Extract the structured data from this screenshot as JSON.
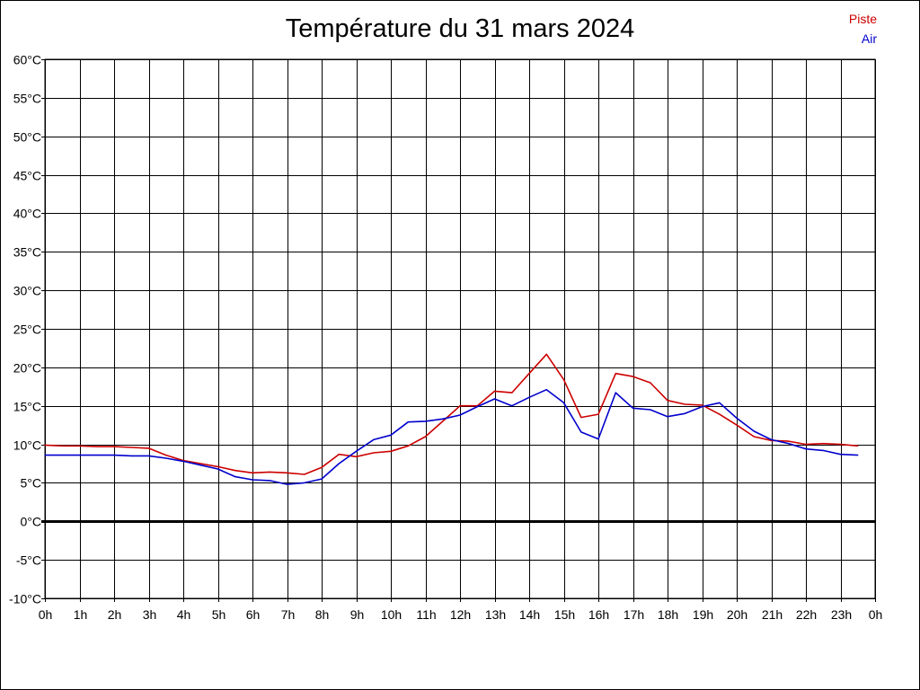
{
  "chart_data": {
    "type": "line",
    "title": "Température du 31 mars 2024",
    "xlabel": "",
    "ylabel": "",
    "x_unit": "hour",
    "xlim": [
      0,
      24
    ],
    "ylim": [
      -10,
      60
    ],
    "x_ticks": [
      "0h",
      "1h",
      "2h",
      "3h",
      "4h",
      "5h",
      "6h",
      "7h",
      "8h",
      "9h",
      "10h",
      "11h",
      "12h",
      "13h",
      "14h",
      "15h",
      "16h",
      "17h",
      "18h",
      "19h",
      "20h",
      "21h",
      "22h",
      "23h",
      "0h"
    ],
    "y_ticks": [
      "-10°C",
      "-5°C",
      "0°C",
      "5°C",
      "10°C",
      "15°C",
      "20°C",
      "25°C",
      "30°C",
      "35°C",
      "40°C",
      "45°C",
      "50°C",
      "55°C",
      "60°C"
    ],
    "y_tick_values": [
      -10,
      -5,
      0,
      5,
      10,
      15,
      20,
      25,
      30,
      35,
      40,
      45,
      50,
      55,
      60
    ],
    "grid": true,
    "legend_position": "top-right",
    "series": [
      {
        "name": "Piste",
        "color": "#cc0000",
        "x": [
          0,
          0.5,
          1,
          1.5,
          2,
          2.5,
          3,
          3.5,
          4,
          4.5,
          5,
          5.5,
          6,
          6.5,
          7,
          7.5,
          8,
          8.5,
          9,
          9.5,
          10,
          10.5,
          11,
          11.5,
          12,
          12.5,
          13,
          13.5,
          14,
          14.5,
          15,
          15.5,
          16,
          16.5,
          17,
          17.5,
          18,
          18.5,
          19,
          19.5,
          20,
          20.5,
          21,
          21.5,
          22,
          22.5,
          23,
          23.5
        ],
        "values": [
          9.9,
          9.8,
          9.8,
          9.7,
          9.7,
          9.6,
          9.5,
          8.6,
          7.9,
          7.5,
          7.1,
          6.6,
          6.3,
          6.4,
          6.3,
          6.1,
          7.0,
          8.7,
          8.4,
          8.9,
          9.1,
          9.8,
          11.0,
          13.0,
          15.0,
          15.0,
          16.9,
          16.7,
          19.2,
          21.7,
          18.4,
          13.5,
          13.9,
          19.2,
          18.8,
          18.0,
          15.7,
          15.2,
          15.1,
          13.9,
          12.5,
          11.0,
          10.5,
          10.4,
          10.0,
          10.1,
          10.0,
          9.8
        ]
      },
      {
        "name": "Air",
        "color": "#0000cc",
        "x": [
          0,
          0.5,
          1,
          1.5,
          2,
          2.5,
          3,
          3.5,
          4,
          4.5,
          5,
          5.5,
          6,
          6.5,
          7,
          7.5,
          8,
          8.5,
          9,
          9.5,
          10,
          10.5,
          11,
          11.5,
          12,
          12.5,
          13,
          13.5,
          14,
          14.5,
          15,
          15.5,
          16,
          16.5,
          17,
          17.5,
          18,
          18.5,
          19,
          19.5,
          20,
          20.5,
          21,
          21.5,
          22,
          22.5,
          23,
          23.5
        ],
        "values": [
          8.6,
          8.6,
          8.6,
          8.6,
          8.6,
          8.5,
          8.5,
          8.2,
          7.8,
          7.3,
          6.8,
          5.8,
          5.4,
          5.3,
          4.8,
          5.0,
          5.5,
          7.5,
          9.1,
          10.6,
          11.2,
          12.9,
          13.0,
          13.3,
          13.8,
          14.9,
          15.9,
          15.0,
          16.1,
          17.1,
          15.4,
          11.6,
          10.7,
          16.7,
          14.7,
          14.5,
          13.6,
          14.0,
          14.9,
          15.4,
          13.4,
          11.7,
          10.6,
          10.1,
          9.4,
          9.2,
          8.7,
          8.6
        ]
      }
    ]
  }
}
